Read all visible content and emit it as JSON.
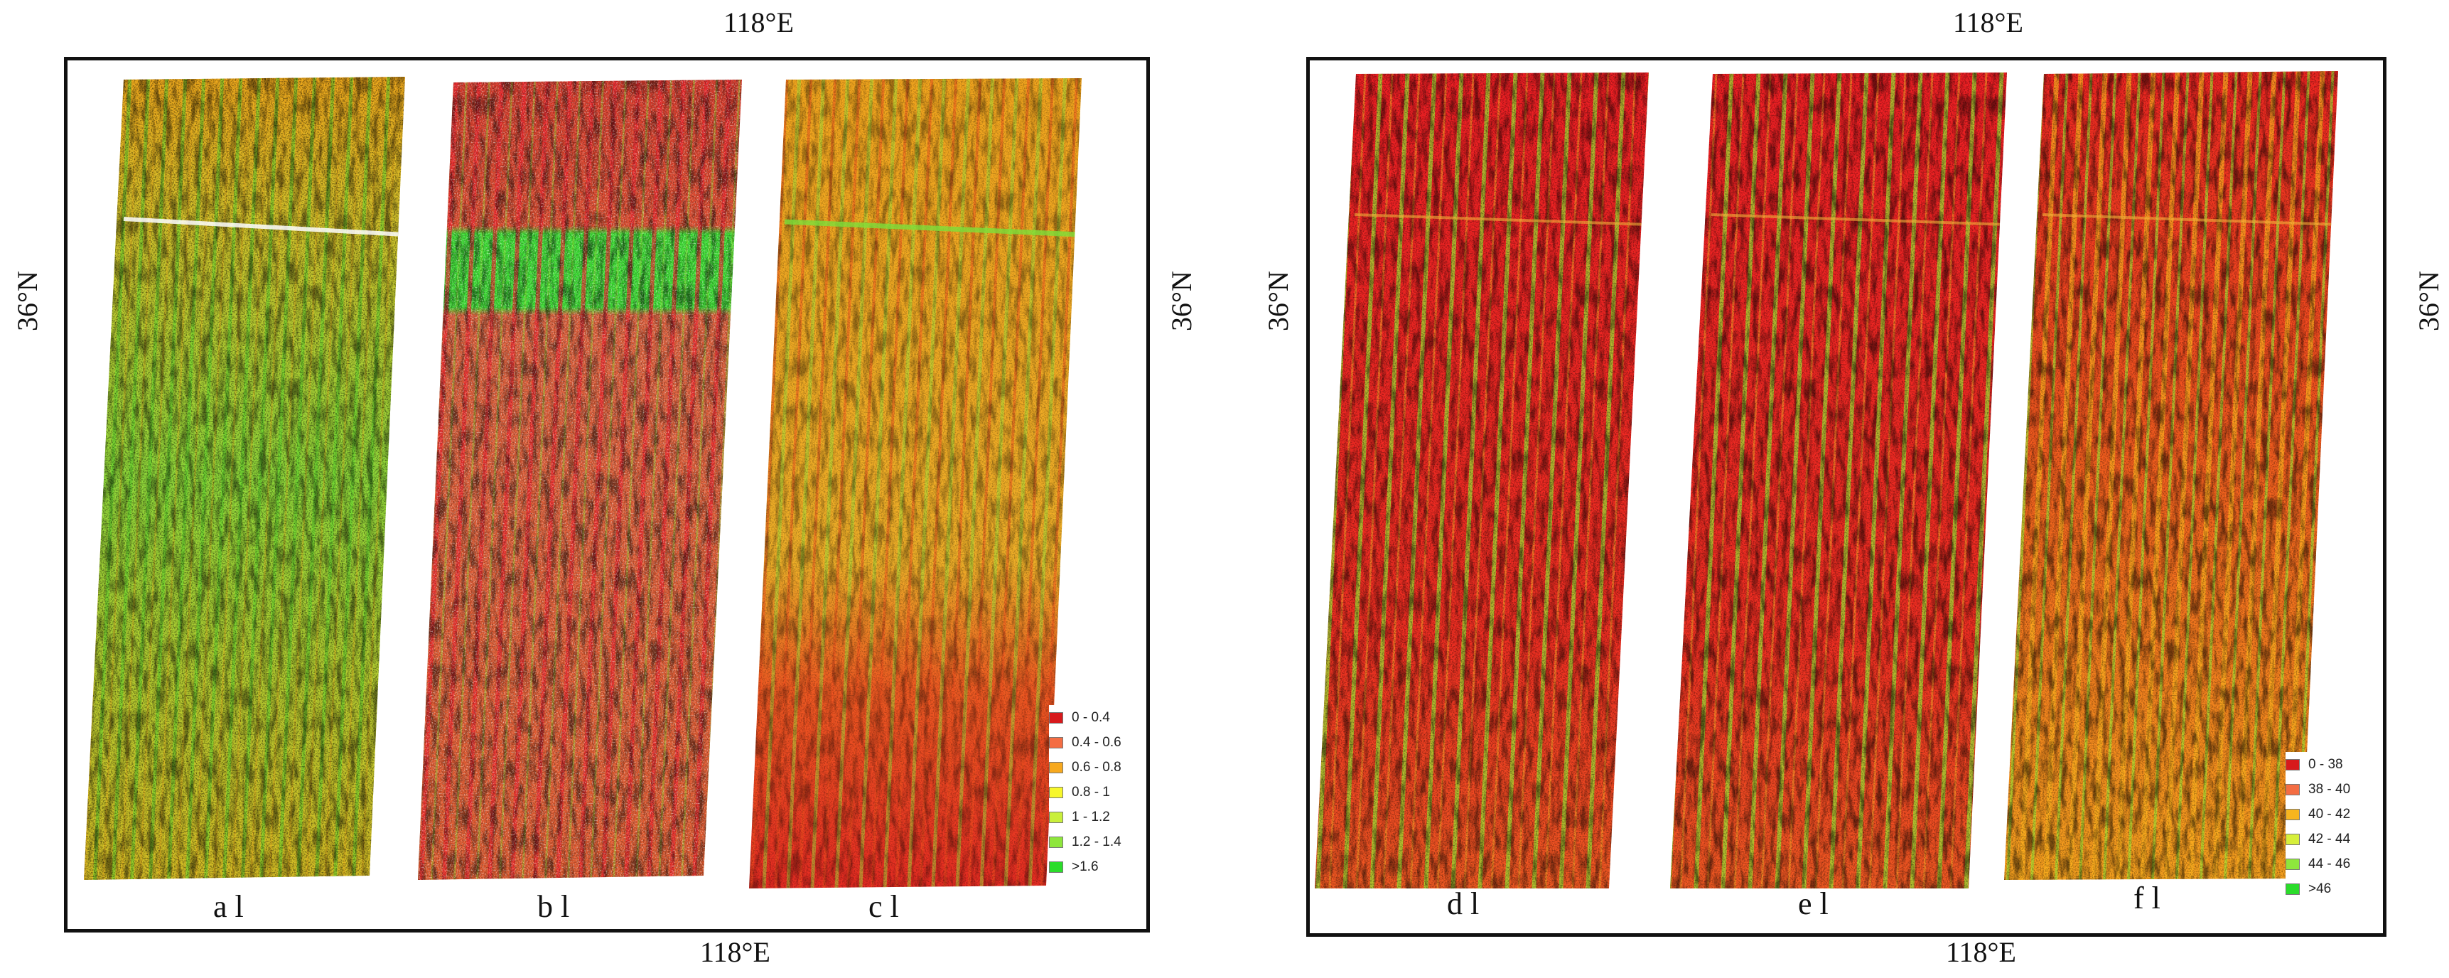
{
  "left_panel": {
    "coords": {
      "top": "118°E",
      "bottom": "118°E",
      "left": "36°N",
      "right": "36°N"
    },
    "maps": [
      {
        "label": "a",
        "scheme": "mostly-green"
      },
      {
        "label": "b",
        "scheme": "red-green-white"
      },
      {
        "label": "c",
        "scheme": "orange-red"
      }
    ],
    "legend": [
      {
        "range": "0 - 0.4",
        "color": "#d7191c"
      },
      {
        "range": "0.4 - 0.6",
        "color": "#f46d43"
      },
      {
        "range": "0.6 - 0.8",
        "color": "#f7a91e"
      },
      {
        "range": "0.8 - 1",
        "color": "#f7f72a"
      },
      {
        "range": "1 - 1.2",
        "color": "#c9ef3b"
      },
      {
        "range": "1.2 - 1.4",
        "color": "#8ee63c"
      },
      {
        "range": ">1.6",
        "color": "#2bdc2b"
      }
    ]
  },
  "right_panel": {
    "coords": {
      "top": "118°E",
      "bottom": "118°E",
      "left": "36°N",
      "right": "36°N"
    },
    "maps": [
      {
        "label": "d",
        "scheme": "red"
      },
      {
        "label": "e",
        "scheme": "red"
      },
      {
        "label": "f",
        "scheme": "red-orange"
      }
    ],
    "legend": [
      {
        "range": "0 - 38",
        "color": "#d7191c"
      },
      {
        "range": "38 - 40",
        "color": "#f46d43"
      },
      {
        "range": "40 - 42",
        "color": "#f7b51e"
      },
      {
        "range": "42 - 44",
        "color": "#d6ef3b"
      },
      {
        "range": "44 - 46",
        "color": "#8ee63c"
      },
      {
        "range": ">46",
        "color": "#2bdc2b"
      }
    ]
  }
}
